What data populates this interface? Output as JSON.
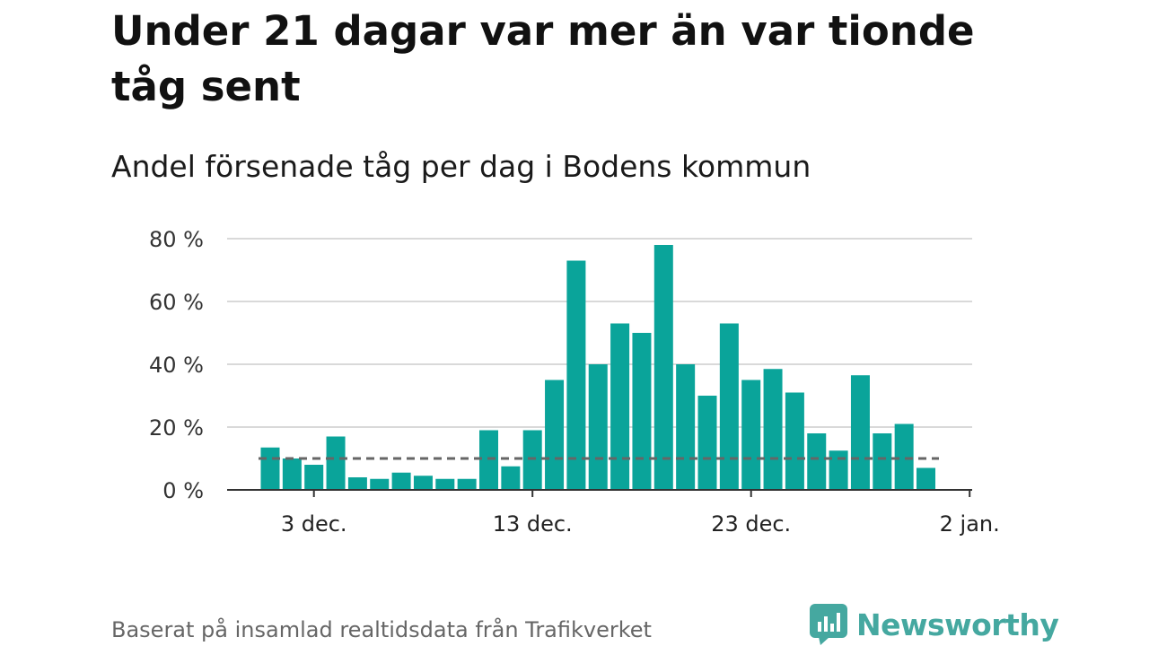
{
  "title": "Under 21 dagar var mer än var tionde tåg sent",
  "subtitle": "Andel försenade tåg per dag i Bodens kommun",
  "footer": "Baserat på insamlad realtidsdata från Trafikverket",
  "brand": "Newsworthy",
  "colors": {
    "bar": "#0aa49a",
    "reference_line": "#666666",
    "grid": "#d9d9d9",
    "axis": "#333333",
    "brand": "#45a8a0"
  },
  "chart_data": {
    "type": "bar",
    "title": "Under 21 dagar var mer än var tionde tåg sent",
    "subtitle": "Andel försenade tåg per dag i Bodens kommun",
    "ylabel": "",
    "xlabel": "",
    "ylim": [
      0,
      80
    ],
    "y_ticks": [
      0,
      20,
      40,
      60,
      80
    ],
    "y_tick_suffix": " %",
    "x_ticks": [
      {
        "label": "3 dec.",
        "day_index": 2
      },
      {
        "label": "13 dec.",
        "day_index": 12
      },
      {
        "label": "23 dec.",
        "day_index": 22
      },
      {
        "label": "2 jan.",
        "day_index": 32
      }
    ],
    "categories": [
      "1 dec.",
      "2 dec.",
      "3 dec.",
      "4 dec.",
      "5 dec.",
      "6 dec.",
      "7 dec.",
      "8 dec.",
      "9 dec.",
      "10 dec.",
      "11 dec.",
      "12 dec.",
      "13 dec.",
      "14 dec.",
      "15 dec.",
      "16 dec.",
      "17 dec.",
      "18 dec.",
      "19 dec.",
      "20 dec.",
      "21 dec.",
      "22 dec.",
      "23 dec.",
      "24 dec.",
      "25 dec.",
      "26 dec.",
      "27 dec.",
      "28 dec.",
      "29 dec.",
      "30 dec.",
      "31 dec."
    ],
    "values": [
      13.5,
      10,
      8,
      17,
      4,
      3.5,
      5.5,
      4.5,
      3.5,
      3.5,
      19,
      7.5,
      19,
      35,
      73,
      40,
      53,
      50,
      78,
      40,
      30,
      53,
      35,
      38.5,
      31,
      18,
      12.5,
      36.5,
      18,
      21,
      7
    ],
    "reference_line": {
      "value": 10,
      "style": "dashed"
    },
    "grid": true
  }
}
